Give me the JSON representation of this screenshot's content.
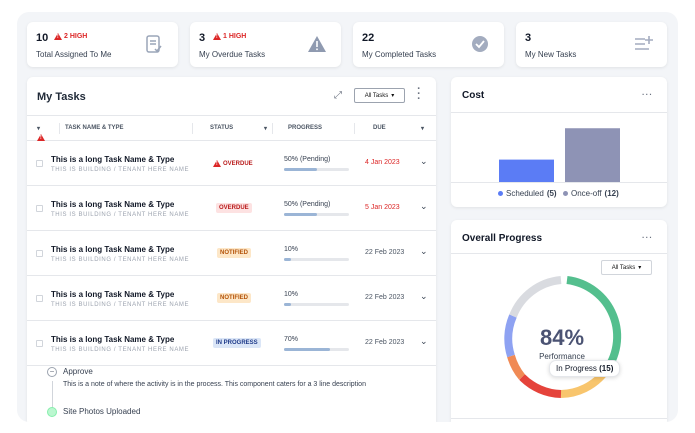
{
  "stats": [
    {
      "count": "10",
      "badge": "2 HIGH",
      "label": "Total Assigned To Me",
      "icon": "clipboard-check-icon"
    },
    {
      "count": "3",
      "badge": "1 HIGH",
      "label": "My Overdue Tasks",
      "icon": "warning-icon"
    },
    {
      "count": "22",
      "badge": "",
      "label": "My Completed Tasks",
      "icon": "check-circle-icon"
    },
    {
      "count": "3",
      "badge": "",
      "label": "My New Tasks",
      "icon": "list-add-icon"
    }
  ],
  "tasks": {
    "title": "My Tasks",
    "filter": "All Tasks",
    "columns": {
      "name": "TASK NAME & TYPE",
      "status": "STATUS",
      "progress": "PROGRESS",
      "due": "DUE"
    },
    "rows": [
      {
        "name": "This is a long Task Name & Type",
        "sub": "THIS IS BUILDING / TENANT HERE NAME",
        "status": "OVERDUE",
        "progress_text": "50% (Pending)",
        "progress": 0.5,
        "due": "4 Jan 2023"
      },
      {
        "name": "This is a long Task Name & Type",
        "sub": "THIS IS BUILDING / TENANT HERE NAME",
        "status": "OVERDUE",
        "progress_text": "50% (Pending)",
        "progress": 0.5,
        "due": "5 Jan 2023"
      },
      {
        "name": "This is a long Task Name & Type",
        "sub": "THIS IS BUILDING / TENANT HERE NAME",
        "status": "NOTIFIED",
        "progress_text": "10%",
        "progress": 0.1,
        "due": "22 Feb 2023"
      },
      {
        "name": "This is a long Task Name & Type",
        "sub": "THIS IS BUILDING / TENANT HERE NAME",
        "status": "NOTIFIED",
        "progress_text": "10%",
        "progress": 0.1,
        "due": "22 Feb 2023"
      },
      {
        "name": "This is a long Task Name & Type",
        "sub": "THIS IS BUILDING / TENANT HERE NAME",
        "status": "IN PROGRESS",
        "progress_text": "70%",
        "progress": 0.7,
        "due": "22 Feb 2023"
      }
    ],
    "detail": {
      "step1_title": "Approve",
      "step1_desc": "This is a note of where the activity is in the process.  This component caters for a 3 line description",
      "step2_title": "Site Photos Uploaded"
    }
  },
  "cost": {
    "title": "Cost",
    "legend": [
      {
        "label": "Scheduled",
        "count": "(5)",
        "color": "#5b7cf5"
      },
      {
        "label": "Once-off",
        "count": "(12)",
        "color": "#8e93b5"
      }
    ]
  },
  "progress_card": {
    "title": "Overall Progress",
    "filter": "All Tasks",
    "percent": "84%",
    "caption": "Performance",
    "tooltip": "In Progress",
    "tooltip_count": "(15)"
  },
  "chart_data": {
    "type": "bar",
    "categories": [
      "Scheduled",
      "Once-off"
    ],
    "values": [
      5,
      12
    ],
    "title": "Cost"
  },
  "colors": {
    "accent": "#4a90d9",
    "high": "#dc2626"
  }
}
